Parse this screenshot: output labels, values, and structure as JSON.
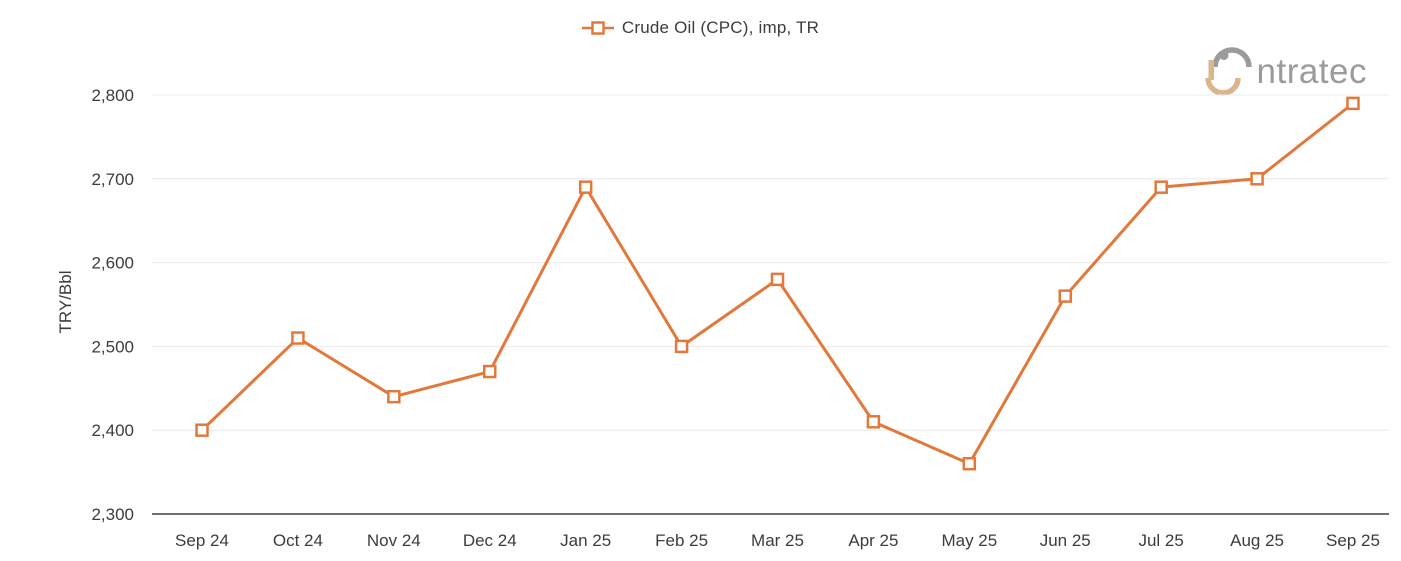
{
  "legend": {
    "label": "Crude Oil (CPC), imp, TR"
  },
  "logo": {
    "brand": "intratec"
  },
  "colors": {
    "accent": "#e2793c",
    "marker_fill": "#ffffff",
    "grid": "#ececec",
    "axis_line": "#717171",
    "text": "#3c3c3c",
    "logo_gray": "#9b9b9b",
    "logo_tan": "#dbb58c"
  },
  "chart_data": {
    "type": "line",
    "title": "",
    "categories": [
      "Sep 24",
      "Oct 24",
      "Nov 24",
      "Dec 24",
      "Jan 25",
      "Feb 25",
      "Mar 25",
      "Apr 25",
      "May 25",
      "Jun 25",
      "Jul 25",
      "Aug 25",
      "Sep 25"
    ],
    "series": [
      {
        "name": "Crude Oil (CPC), imp, TR",
        "values": [
          2400,
          2510,
          2440,
          2470,
          2690,
          2500,
          2580,
          2410,
          2360,
          2560,
          2690,
          2700,
          2790
        ],
        "marker": "square",
        "color": "#e2793c"
      }
    ],
    "xlabel": "",
    "ylabel": "TRY/Bbl",
    "ylim": [
      2300,
      2800
    ],
    "yticks": [
      2300,
      2400,
      2500,
      2600,
      2700,
      2800
    ],
    "grid": true,
    "legend_position": "top-center"
  }
}
